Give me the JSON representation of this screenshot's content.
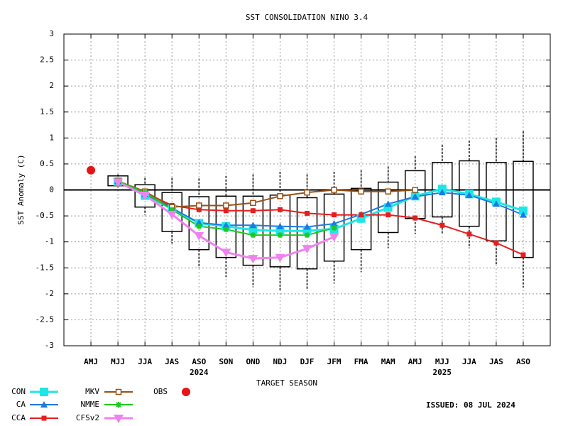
{
  "chart_data": {
    "type": "line",
    "title": "SST CONSOLIDATION NINO 3.4",
    "xlabel": "TARGET SEASON",
    "ylabel": "SST Anomaly (C)",
    "issued": "ISSUED: 08 JUL 2024",
    "categories": [
      "AMJ",
      "MJJ",
      "JJA",
      "JAS",
      "ASO",
      "SON",
      "OND",
      "NDJ",
      "DJF",
      "JFM",
      "FMA",
      "MAM",
      "AMJ",
      "MJJ",
      "JJA",
      "JAS",
      "ASO"
    ],
    "category_sublabels": [
      null,
      null,
      null,
      null,
      "2024",
      null,
      null,
      null,
      null,
      null,
      null,
      null,
      null,
      "2025",
      null,
      null,
      null
    ],
    "ylim": [
      -3,
      3
    ],
    "yticks": [
      -3,
      -2.5,
      -2,
      -1.5,
      -1,
      -0.5,
      0,
      0.5,
      1,
      1.5,
      2,
      2.5,
      3
    ],
    "grid": true,
    "zero_line": true,
    "box_color": "#000000",
    "box_high": [
      null,
      0.27,
      0.1,
      -0.05,
      -0.13,
      -0.12,
      -0.12,
      -0.1,
      -0.15,
      -0.08,
      0.03,
      0.15,
      0.37,
      0.53,
      0.56,
      0.53,
      0.55
    ],
    "box_low": [
      null,
      0.08,
      -0.33,
      -0.8,
      -1.15,
      -1.3,
      -1.45,
      -1.48,
      -1.52,
      -1.37,
      -1.15,
      -0.82,
      -0.55,
      -0.52,
      -0.7,
      -0.98,
      -1.3
    ],
    "whisker_high": [
      null,
      0.3,
      0.23,
      0.23,
      0.22,
      0.27,
      0.3,
      0.35,
      0.3,
      0.35,
      0.38,
      0.45,
      0.65,
      0.87,
      0.95,
      1.0,
      1.13
    ],
    "whisker_low": [
      null,
      0.05,
      -0.48,
      -1.03,
      -1.5,
      -1.68,
      -1.87,
      -1.93,
      -1.93,
      -1.8,
      -1.58,
      -1.12,
      -0.85,
      -0.85,
      -1.12,
      -1.45,
      -1.88
    ],
    "series": [
      {
        "name": "CON",
        "color": "#1ee6e6",
        "marker": "square",
        "line_width": 3,
        "values": [
          null,
          0.16,
          -0.11,
          -0.36,
          -0.64,
          -0.7,
          -0.77,
          -0.79,
          -0.79,
          -0.75,
          -0.55,
          -0.34,
          -0.12,
          0.02,
          -0.08,
          -0.23,
          -0.4
        ]
      },
      {
        "name": "CA",
        "color": "#1e78e6",
        "marker": "triangle",
        "line_width": 2,
        "values": [
          null,
          0.17,
          -0.08,
          -0.35,
          -0.63,
          -0.68,
          -0.68,
          -0.7,
          -0.71,
          -0.65,
          -0.47,
          -0.27,
          -0.13,
          -0.05,
          -0.1,
          -0.27,
          -0.48
        ]
      },
      {
        "name": "CCA",
        "color": "#e61e1e",
        "marker": "square-small",
        "line_width": 2,
        "values": [
          null,
          0.17,
          -0.05,
          -0.3,
          -0.38,
          -0.4,
          -0.4,
          -0.38,
          -0.45,
          -0.48,
          -0.48,
          -0.48,
          -0.54,
          -0.68,
          -0.85,
          -1.02,
          -1.25
        ]
      },
      {
        "name": "MKV",
        "color": "#9a5014",
        "marker": "square-open",
        "line_width": 2,
        "values": [
          null,
          0.17,
          -0.03,
          -0.33,
          -0.3,
          -0.3,
          -0.25,
          -0.12,
          -0.05,
          0.0,
          -0.03,
          -0.03,
          0.0,
          null,
          null,
          null,
          null
        ]
      },
      {
        "name": "NMME",
        "color": "#1ec81e",
        "marker": "star",
        "line_width": 2,
        "values": [
          null,
          0.17,
          -0.05,
          -0.38,
          -0.7,
          -0.76,
          -0.87,
          -0.87,
          -0.87,
          -0.73,
          null,
          null,
          null,
          null,
          null,
          null,
          null
        ]
      },
      {
        "name": "CFSv2",
        "color": "#f082f0",
        "marker": "triangle-down",
        "line_width": 3,
        "values": [
          null,
          0.15,
          -0.1,
          -0.47,
          -0.88,
          -1.2,
          -1.32,
          -1.3,
          -1.13,
          -0.9,
          null,
          null,
          null,
          null,
          null,
          null,
          null
        ]
      },
      {
        "name": "OBS",
        "color": "#e61414",
        "marker": "circle",
        "line_width": 0,
        "values": [
          0.38,
          null,
          null,
          null,
          null,
          null,
          null,
          null,
          null,
          null,
          null,
          null,
          null,
          null,
          null,
          null,
          null
        ]
      }
    ]
  }
}
